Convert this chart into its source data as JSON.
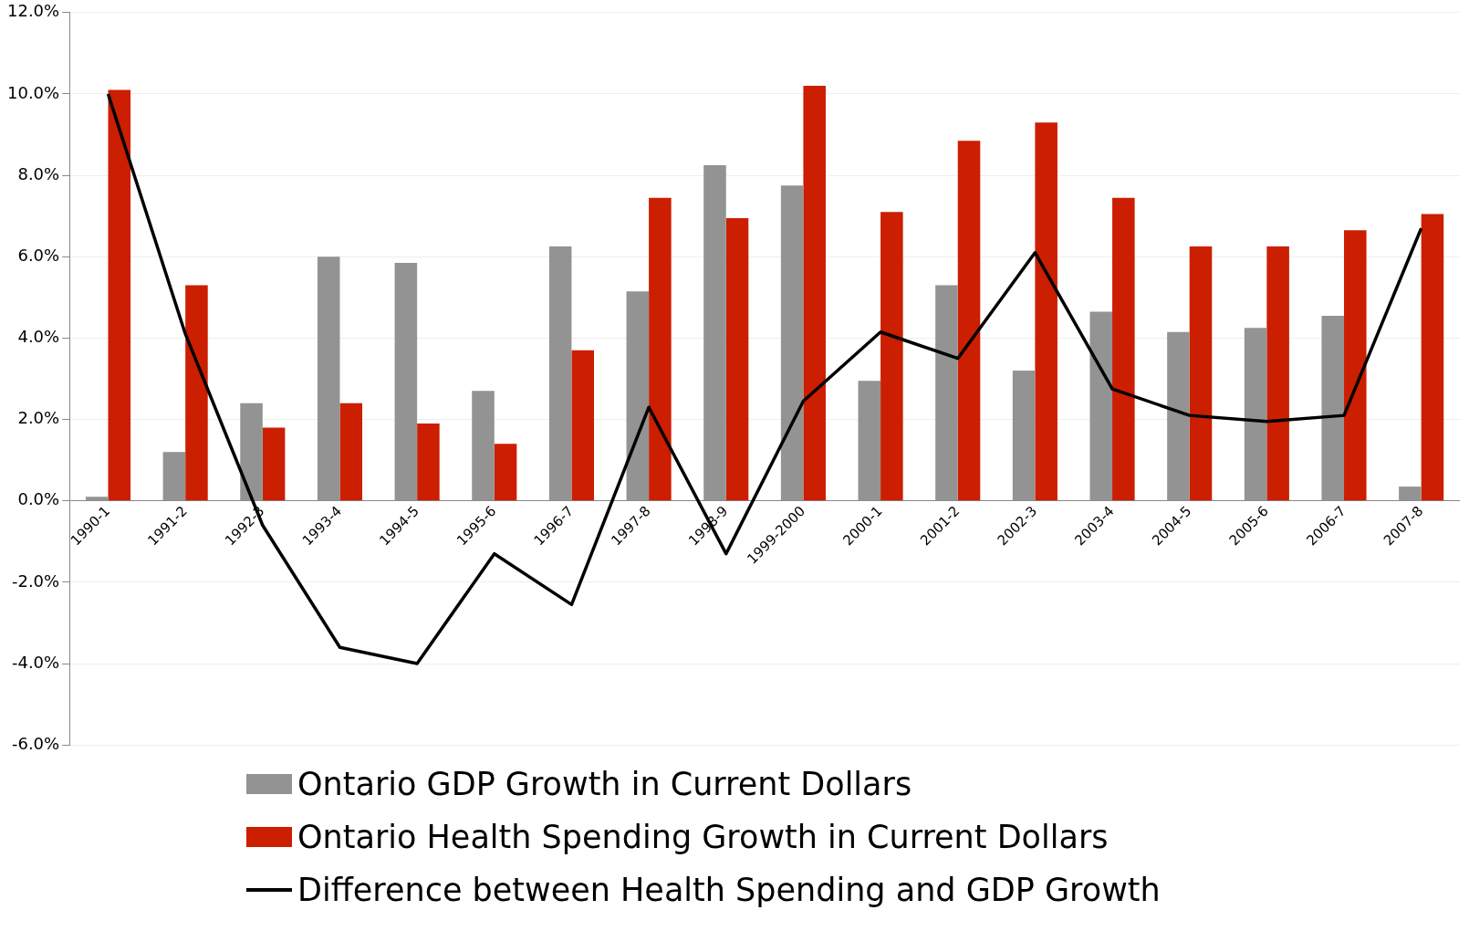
{
  "chart_data": {
    "type": "bar",
    "categories": [
      "1990-1",
      "1991-2",
      "1992-3",
      "1993-4",
      "1994-5",
      "1995-6",
      "1996-7",
      "1997-8",
      "1998-9",
      "1999-2000",
      "2000-1",
      "2001-2",
      "2002-3",
      "2003-4",
      "2004-5",
      "2005-6",
      "2006-7",
      "2007-8"
    ],
    "series": [
      {
        "name": "Ontario GDP Growth in Current Dollars",
        "color": "#939393",
        "values": [
          0.1,
          1.2,
          2.4,
          6.0,
          5.85,
          2.7,
          6.25,
          5.15,
          8.25,
          7.75,
          2.95,
          5.3,
          3.2,
          4.65,
          4.15,
          4.25,
          4.55,
          0.35
        ]
      },
      {
        "name": "Ontario Health Spending Growth in Current Dollars",
        "color": "#cc1e00",
        "values": [
          10.1,
          5.3,
          1.8,
          2.4,
          1.9,
          1.4,
          3.7,
          7.45,
          6.95,
          10.2,
          7.1,
          8.85,
          9.3,
          7.45,
          6.25,
          6.25,
          6.65,
          7.05
        ]
      },
      {
        "name": "Difference between Health Spending and GDP Growth",
        "type": "line",
        "color": "#000000",
        "values": [
          10.0,
          4.1,
          -0.6,
          -3.6,
          -4.0,
          -1.3,
          -2.55,
          2.3,
          -1.3,
          2.45,
          4.15,
          3.5,
          6.1,
          2.75,
          2.1,
          1.95,
          2.1,
          6.7
        ]
      }
    ],
    "ylim": [
      -6,
      12
    ],
    "yticks": [
      {
        "value": -6,
        "label": "-6.0%"
      },
      {
        "value": -4,
        "label": "-4.0%"
      },
      {
        "value": -2,
        "label": "-2.0%"
      },
      {
        "value": 0,
        "label": "0.0%"
      },
      {
        "value": 2,
        "label": "2.0%"
      },
      {
        "value": 4,
        "label": "4.0%"
      },
      {
        "value": 6,
        "label": "6.0%"
      },
      {
        "value": 8,
        "label": "8.0%"
      },
      {
        "value": 10,
        "label": "10.0%"
      },
      {
        "value": 12,
        "label": "12.0%"
      }
    ],
    "grid": "y",
    "legend": "bottom",
    "marker": "none",
    "line_style": "solid"
  }
}
